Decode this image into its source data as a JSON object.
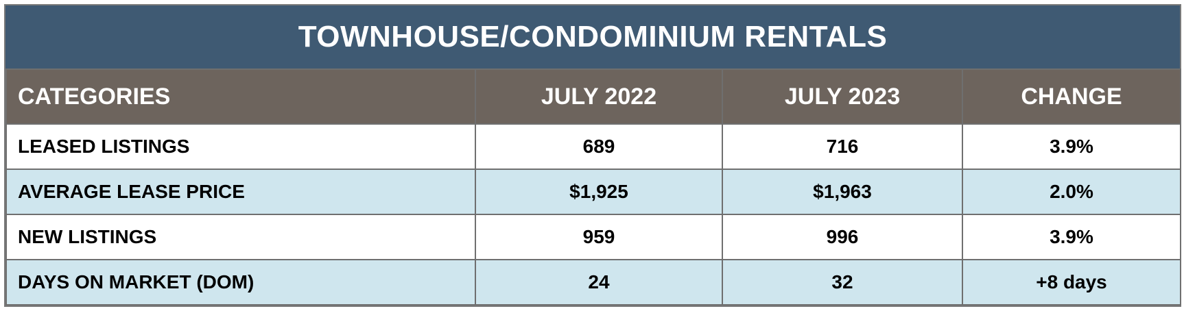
{
  "title": "TOWNHOUSE/CONDOMINIUM RENTALS",
  "columns": [
    "CATEGORIES",
    "JULY 2022",
    "JULY 2023",
    "CHANGE"
  ],
  "rows": [
    {
      "category": "LEASED LISTINGS",
      "jul2022": "689",
      "jul2023": "716",
      "change": "3.9%"
    },
    {
      "category": "AVERAGE LEASE PRICE",
      "jul2022": "$1,925",
      "jul2023": "$1,963",
      "change": "2.0%"
    },
    {
      "category": "NEW LISTINGS",
      "jul2022": "959",
      "jul2023": "996",
      "change": "3.9%"
    },
    {
      "category": "DAYS ON MARKET (DOM)",
      "jul2022": "24",
      "jul2023": "32",
      "change": "+8 days"
    }
  ],
  "colors": {
    "title_bg": "#3f5a73",
    "header_bg": "#6d645d",
    "band_bg": "#cfe6ee"
  }
}
